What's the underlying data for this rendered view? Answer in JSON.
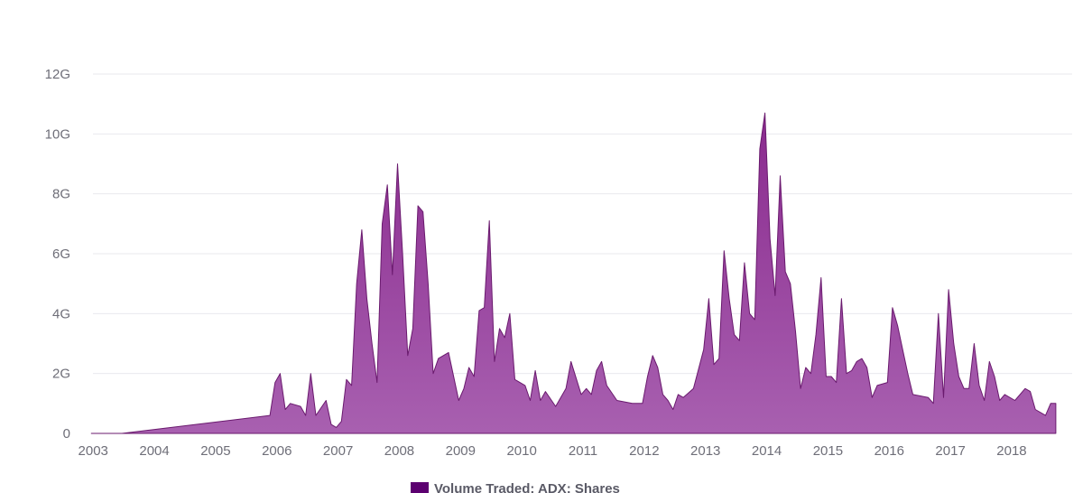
{
  "chart_data": {
    "type": "area",
    "title": "",
    "xlabel": "",
    "ylabel": "",
    "x_range": [
      "2003-01",
      "2018-11"
    ],
    "ylim": [
      0,
      12000000000
    ],
    "y_ticks": [
      {
        "value": 0,
        "label": "0"
      },
      {
        "value": 2000000000,
        "label": "2G"
      },
      {
        "value": 4000000000,
        "label": "4G"
      },
      {
        "value": 6000000000,
        "label": "6G"
      },
      {
        "value": 8000000000,
        "label": "8G"
      },
      {
        "value": 10000000000,
        "label": "10G"
      },
      {
        "value": 12000000000,
        "label": "12G"
      }
    ],
    "x_ticks": [
      "2003",
      "2004",
      "2005",
      "2006",
      "2007",
      "2008",
      "2009",
      "2010",
      "2011",
      "2012",
      "2013",
      "2014",
      "2015",
      "2016",
      "2017",
      "2018"
    ],
    "grid": true,
    "legend_position": "bottom",
    "colors": {
      "fill_top": "#8a2a8e",
      "fill_bottom": "#a860b0",
      "stroke": "#6a1a6e",
      "legend_swatch": "#5c0070"
    },
    "series": [
      {
        "name": "Volume Traded: ADX: Shares",
        "points": [
          [
            "2003-01",
            0.0
          ],
          [
            "2003-07",
            0.0
          ],
          [
            "2005-12",
            600000000.0
          ],
          [
            "2006-01",
            1700000000.0
          ],
          [
            "2006-02",
            2000000000.0
          ],
          [
            "2006-03",
            800000000.0
          ],
          [
            "2006-04",
            1000000000.0
          ],
          [
            "2006-06",
            900000000.0
          ],
          [
            "2006-07",
            600000000.0
          ],
          [
            "2006-08",
            2000000000.0
          ],
          [
            "2006-09",
            600000000.0
          ],
          [
            "2006-11",
            1100000000.0
          ],
          [
            "2006-12",
            300000000.0
          ],
          [
            "2007-01",
            200000000.0
          ],
          [
            "2007-02",
            400000000.0
          ],
          [
            "2007-03",
            1800000000.0
          ],
          [
            "2007-04",
            1600000000.0
          ],
          [
            "2007-05",
            5000000000.0
          ],
          [
            "2007-06",
            6800000000.0
          ],
          [
            "2007-07",
            4500000000.0
          ],
          [
            "2007-08",
            3000000000.0
          ],
          [
            "2007-09",
            1700000000.0
          ],
          [
            "2007-10",
            7000000000.0
          ],
          [
            "2007-11",
            8300000000.0
          ],
          [
            "2007-12",
            5300000000.0
          ],
          [
            "2008-01",
            9000000000.0
          ],
          [
            "2008-02",
            6000000000.0
          ],
          [
            "2008-03",
            2600000000.0
          ],
          [
            "2008-04",
            3500000000.0
          ],
          [
            "2008-05",
            7600000000.0
          ],
          [
            "2008-06",
            7400000000.0
          ],
          [
            "2008-07",
            5000000000.0
          ],
          [
            "2008-08",
            2000000000.0
          ],
          [
            "2008-09",
            2500000000.0
          ],
          [
            "2008-11",
            2700000000.0
          ],
          [
            "2009-01",
            1100000000.0
          ],
          [
            "2009-02",
            1500000000.0
          ],
          [
            "2009-03",
            2200000000.0
          ],
          [
            "2009-04",
            1900000000.0
          ],
          [
            "2009-05",
            4100000000.0
          ],
          [
            "2009-06",
            4200000000.0
          ],
          [
            "2009-07",
            7100000000.0
          ],
          [
            "2009-08",
            2400000000.0
          ],
          [
            "2009-09",
            3500000000.0
          ],
          [
            "2009-10",
            3200000000.0
          ],
          [
            "2009-11",
            4000000000.0
          ],
          [
            "2009-12",
            1800000000.0
          ],
          [
            "2010-02",
            1600000000.0
          ],
          [
            "2010-03",
            1100000000.0
          ],
          [
            "2010-04",
            2100000000.0
          ],
          [
            "2010-05",
            1100000000.0
          ],
          [
            "2010-06",
            1400000000.0
          ],
          [
            "2010-08",
            900000000.0
          ],
          [
            "2010-10",
            1500000000.0
          ],
          [
            "2010-11",
            2400000000.0
          ],
          [
            "2011-01",
            1300000000.0
          ],
          [
            "2011-02",
            1500000000.0
          ],
          [
            "2011-03",
            1300000000.0
          ],
          [
            "2011-04",
            2100000000.0
          ],
          [
            "2011-05",
            2400000000.0
          ],
          [
            "2011-06",
            1600000000.0
          ],
          [
            "2011-08",
            1100000000.0
          ],
          [
            "2011-11",
            1000000000.0
          ],
          [
            "2012-01",
            1000000000.0
          ],
          [
            "2012-02",
            1900000000.0
          ],
          [
            "2012-03",
            2600000000.0
          ],
          [
            "2012-04",
            2200000000.0
          ],
          [
            "2012-05",
            1300000000.0
          ],
          [
            "2012-06",
            1100000000.0
          ],
          [
            "2012-07",
            800000000.0
          ],
          [
            "2012-08",
            1300000000.0
          ],
          [
            "2012-09",
            1200000000.0
          ],
          [
            "2012-11",
            1500000000.0
          ],
          [
            "2013-01",
            2800000000.0
          ],
          [
            "2013-02",
            4500000000.0
          ],
          [
            "2013-03",
            2300000000.0
          ],
          [
            "2013-04",
            2500000000.0
          ],
          [
            "2013-05",
            6100000000.0
          ],
          [
            "2013-06",
            4500000000.0
          ],
          [
            "2013-07",
            3300000000.0
          ],
          [
            "2013-08",
            3100000000.0
          ],
          [
            "2013-09",
            5700000000.0
          ],
          [
            "2013-10",
            4000000000.0
          ],
          [
            "2013-11",
            3800000000.0
          ],
          [
            "2013-12",
            9500000000.0
          ],
          [
            "2014-01",
            10700000000.0
          ],
          [
            "2014-02",
            6500000000.0
          ],
          [
            "2014-03",
            4600000000.0
          ],
          [
            "2014-04",
            8600000000.0
          ],
          [
            "2014-05",
            5400000000.0
          ],
          [
            "2014-06",
            5000000000.0
          ],
          [
            "2014-07",
            3400000000.0
          ],
          [
            "2014-08",
            1500000000.0
          ],
          [
            "2014-09",
            2200000000.0
          ],
          [
            "2014-10",
            2000000000.0
          ],
          [
            "2014-11",
            3300000000.0
          ],
          [
            "2014-12",
            5200000000.0
          ],
          [
            "2015-01",
            1900000000.0
          ],
          [
            "2015-02",
            1900000000.0
          ],
          [
            "2015-03",
            1700000000.0
          ],
          [
            "2015-04",
            4500000000.0
          ],
          [
            "2015-05",
            2000000000.0
          ],
          [
            "2015-06",
            2100000000.0
          ],
          [
            "2015-07",
            2400000000.0
          ],
          [
            "2015-08",
            2500000000.0
          ],
          [
            "2015-09",
            2200000000.0
          ],
          [
            "2015-10",
            1200000000.0
          ],
          [
            "2015-11",
            1600000000.0
          ],
          [
            "2016-01",
            1700000000.0
          ],
          [
            "2016-02",
            4200000000.0
          ],
          [
            "2016-03",
            3600000000.0
          ],
          [
            "2016-04",
            2800000000.0
          ],
          [
            "2016-05",
            2000000000.0
          ],
          [
            "2016-06",
            1300000000.0
          ],
          [
            "2016-09",
            1200000000.0
          ],
          [
            "2016-10",
            1000000000.0
          ],
          [
            "2016-11",
            4000000000.0
          ],
          [
            "2016-12",
            1200000000.0
          ],
          [
            "2017-01",
            4800000000.0
          ],
          [
            "2017-02",
            3000000000.0
          ],
          [
            "2017-03",
            1900000000.0
          ],
          [
            "2017-04",
            1500000000.0
          ],
          [
            "2017-05",
            1500000000.0
          ],
          [
            "2017-06",
            3000000000.0
          ],
          [
            "2017-07",
            1600000000.0
          ],
          [
            "2017-08",
            1100000000.0
          ],
          [
            "2017-09",
            2400000000.0
          ],
          [
            "2017-10",
            1900000000.0
          ],
          [
            "2017-11",
            1100000000.0
          ],
          [
            "2017-12",
            1300000000.0
          ],
          [
            "2018-02",
            1100000000.0
          ],
          [
            "2018-04",
            1500000000.0
          ],
          [
            "2018-05",
            1400000000.0
          ],
          [
            "2018-06",
            800000000.0
          ],
          [
            "2018-08",
            600000000.0
          ],
          [
            "2018-09",
            1000000000.0
          ],
          [
            "2018-10",
            1000000000.0
          ]
        ]
      }
    ]
  }
}
